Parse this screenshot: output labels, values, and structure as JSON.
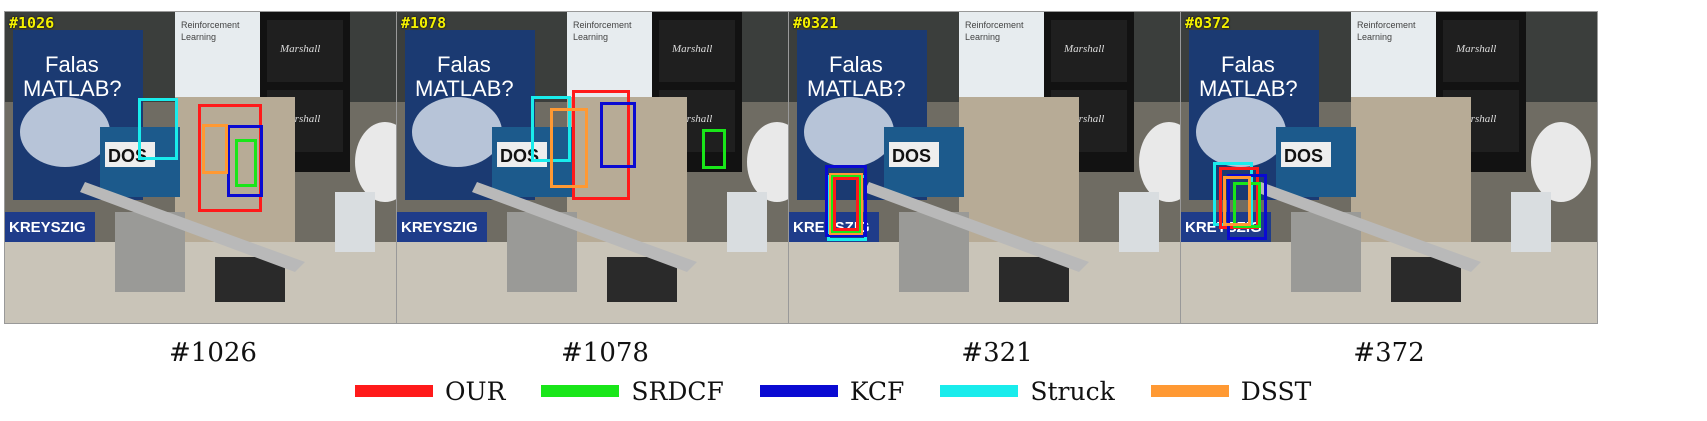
{
  "frames": [
    {
      "overlay": "#1026",
      "caption": "#1026"
    },
    {
      "overlay": "#1078",
      "caption": "#1078"
    },
    {
      "overlay": "#0321",
      "caption": "#321"
    },
    {
      "overlay": "#0372",
      "caption": "#372"
    }
  ],
  "scene_text": {
    "poster": "Falas",
    "poster2": "MATLAB?",
    "book_title": "Reinforcement",
    "book_title2": "Learning",
    "amp_brand": "Marshall",
    "dos": "DOS",
    "kreyszig": "KREYSZIG"
  },
  "legend": [
    {
      "label": "OUR",
      "color": "#ff1a1a"
    },
    {
      "label": "SRDCF",
      "color": "#19e619"
    },
    {
      "label": "KCF",
      "color": "#0a0ad2"
    },
    {
      "label": "Struck",
      "color": "#19ecec"
    },
    {
      "label": "DSST",
      "color": "#ff9933"
    }
  ]
}
